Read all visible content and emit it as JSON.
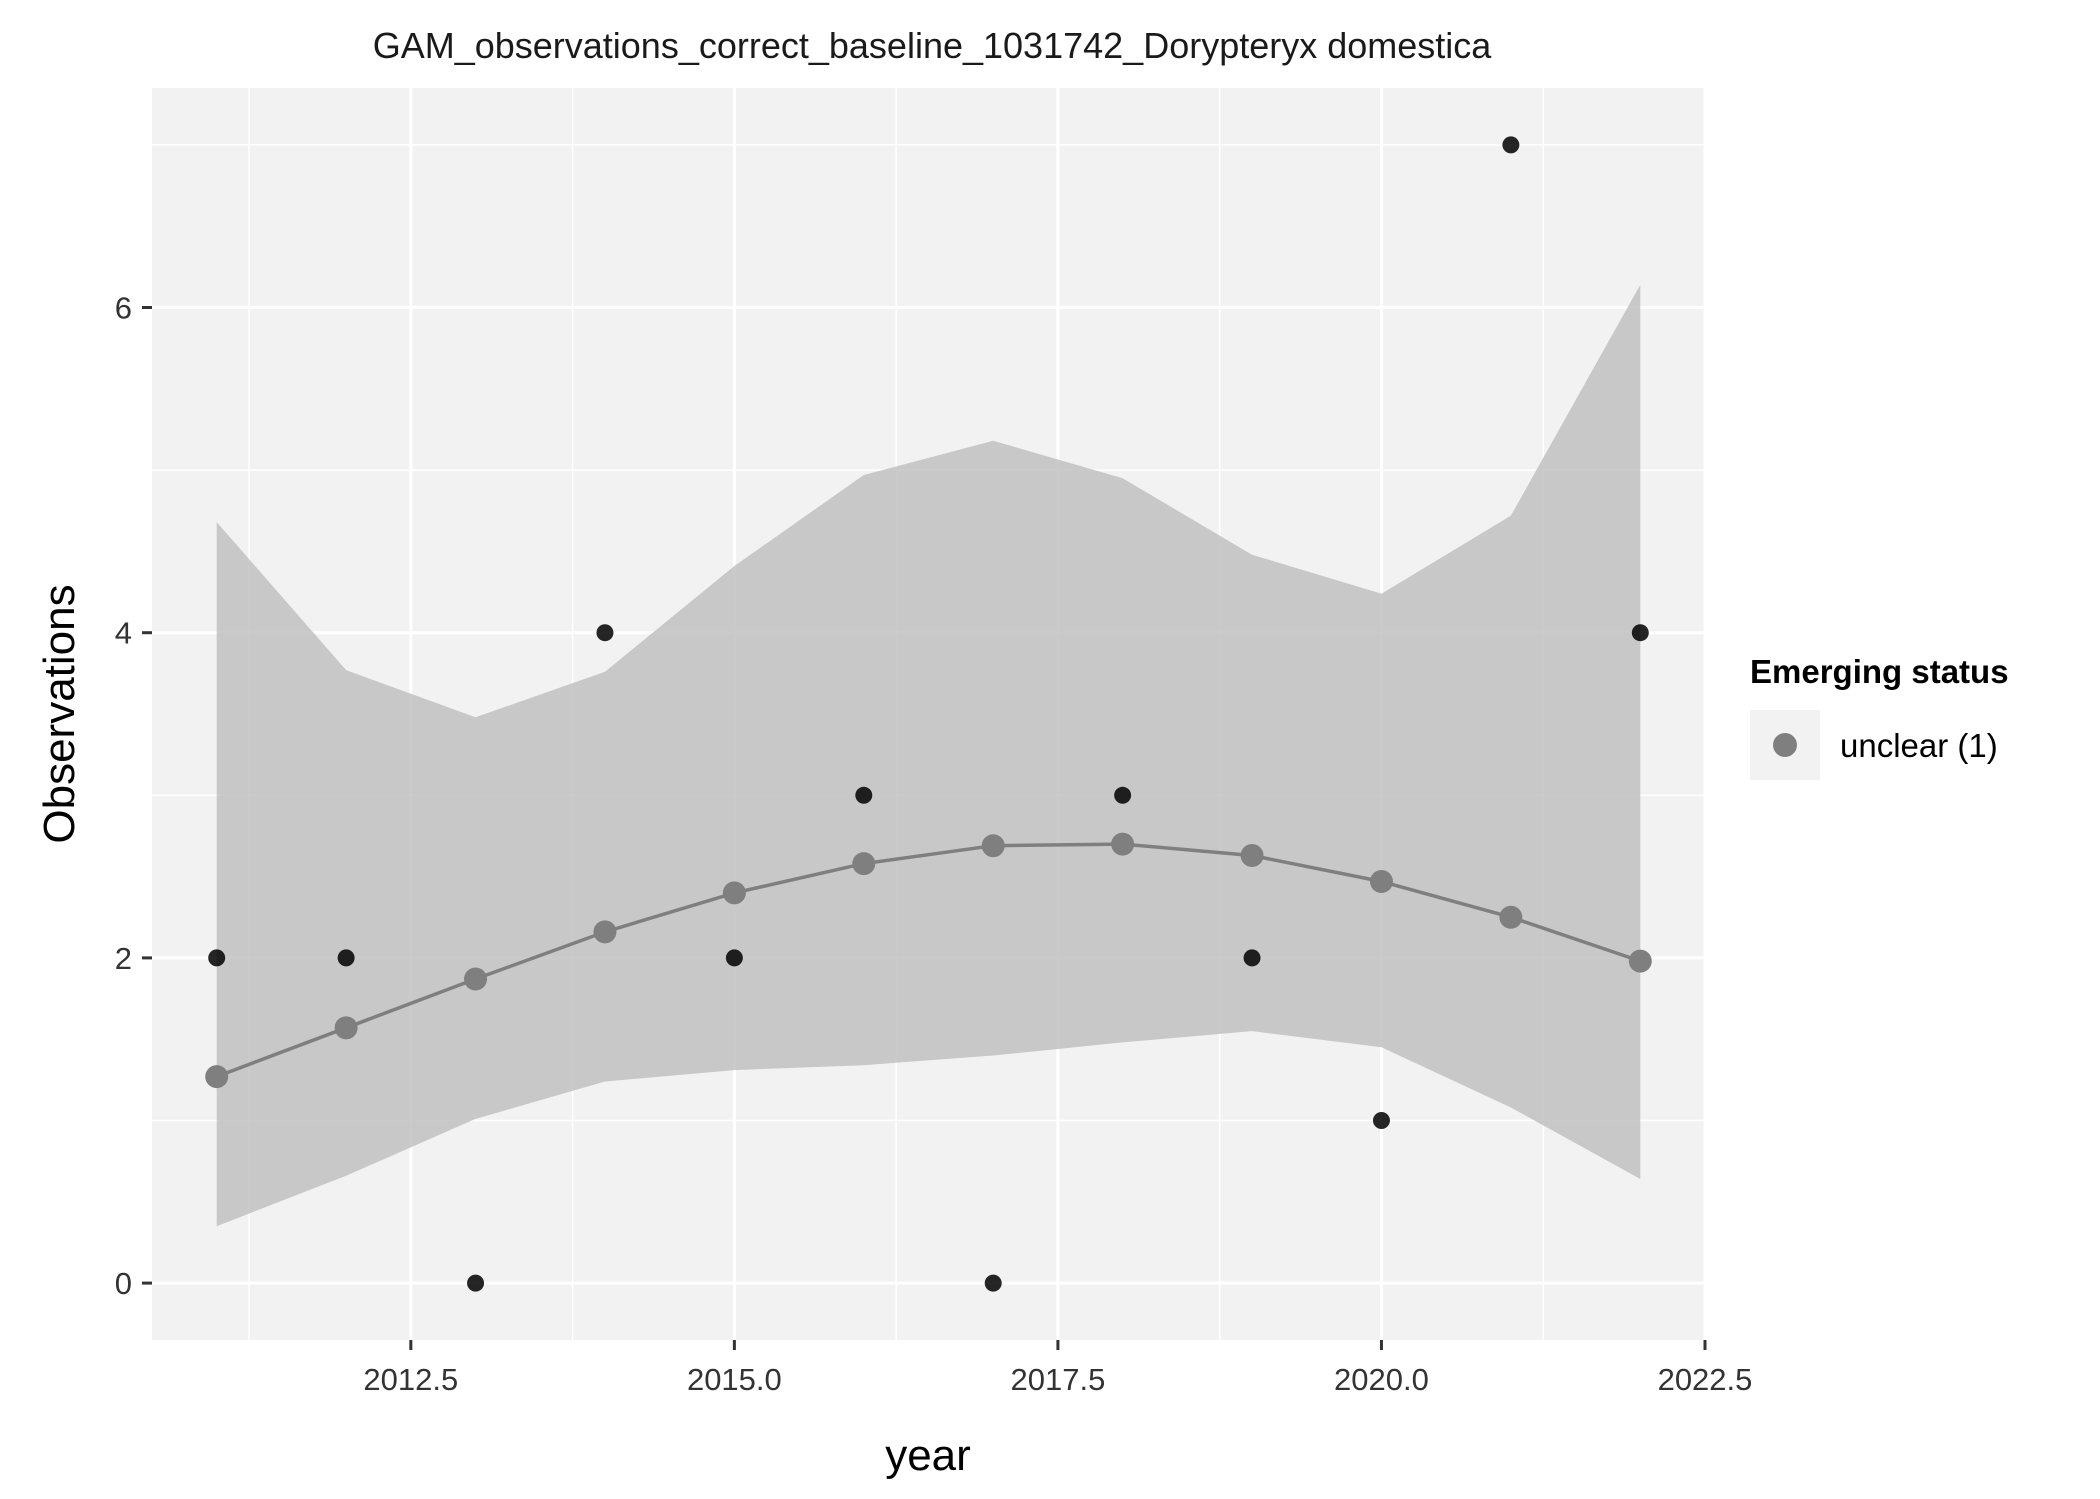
{
  "chart_data": {
    "type": "line",
    "title": "GAM_observations_correct_baseline_1031742_Dorypteryx domestica",
    "xlabel": "year",
    "ylabel": "Observations",
    "xlim": [
      2010.5,
      2022.5
    ],
    "ylim": [
      -0.35,
      7.35
    ],
    "x_ticks": [
      2012.5,
      2015.0,
      2017.5,
      2020.0,
      2022.5
    ],
    "x_tick_labels": [
      "2012.5",
      "2015.0",
      "2017.5",
      "2020.0",
      "2022.5"
    ],
    "y_ticks": [
      0,
      2,
      4,
      6
    ],
    "y_tick_labels": [
      "0",
      "2",
      "4",
      "6"
    ],
    "grid": true,
    "legend": {
      "title": "Emerging status",
      "position": "right",
      "entries": [
        {
          "label": "unclear (1)",
          "color": "#7f7f7f"
        }
      ]
    },
    "observed": {
      "x": [
        2011,
        2012,
        2013,
        2014,
        2015,
        2016,
        2017,
        2018,
        2019,
        2020,
        2021,
        2022
      ],
      "y": [
        2,
        2,
        0,
        4,
        2,
        3,
        0,
        3,
        2,
        1,
        7,
        4
      ]
    },
    "fitted": {
      "x": [
        2011,
        2012,
        2013,
        2014,
        2015,
        2016,
        2017,
        2018,
        2019,
        2020,
        2021,
        2022
      ],
      "y": [
        1.27,
        1.57,
        1.87,
        2.16,
        2.4,
        2.58,
        2.69,
        2.7,
        2.63,
        2.47,
        2.25,
        1.98
      ],
      "lower": [
        0.35,
        0.66,
        1.01,
        1.24,
        1.31,
        1.34,
        1.4,
        1.48,
        1.55,
        1.45,
        1.08,
        0.64
      ],
      "upper": [
        4.68,
        3.77,
        3.48,
        3.76,
        4.41,
        4.97,
        5.18,
        4.95,
        4.48,
        4.24,
        4.72,
        6.14
      ]
    },
    "colors": {
      "panel": "#f2f2f2",
      "grid": "#ffffff",
      "ribbon": "#bdbdbd",
      "fit": "#7f7f7f",
      "observed": "#000000"
    }
  }
}
